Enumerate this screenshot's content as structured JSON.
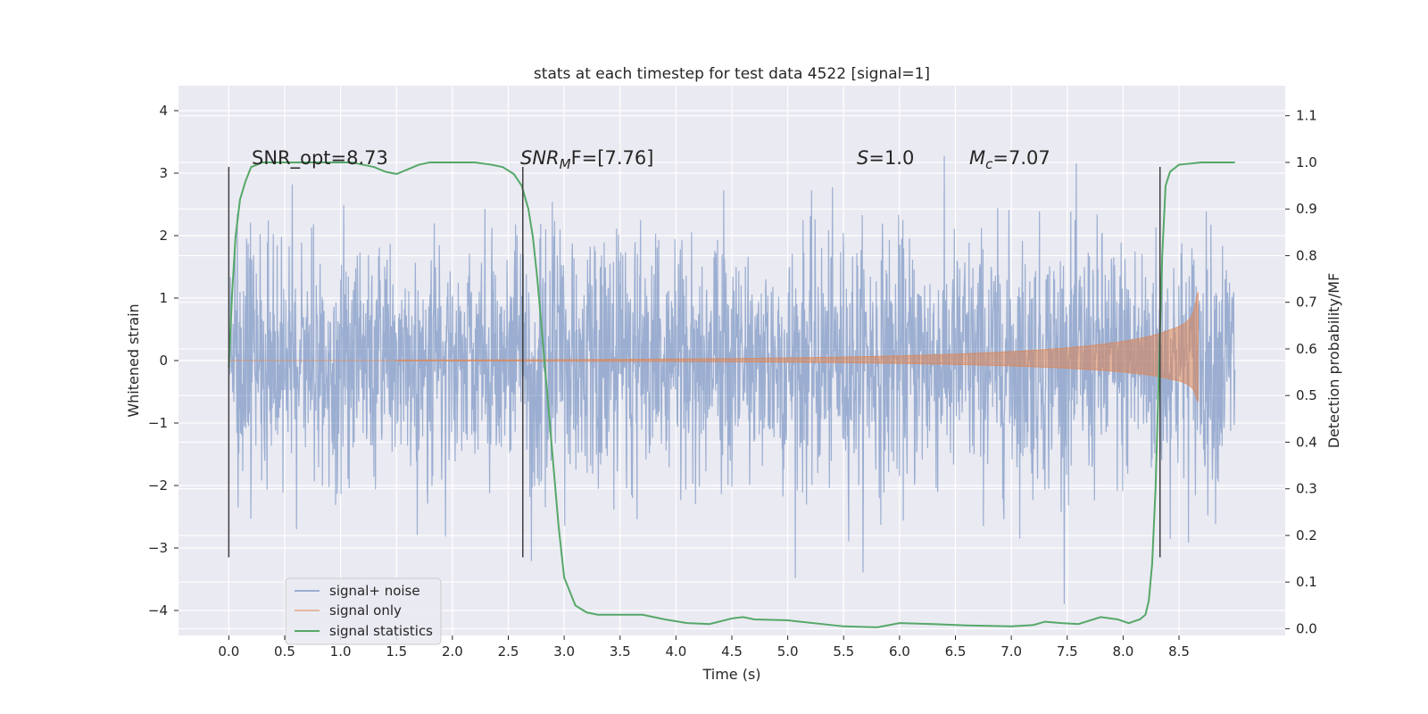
{
  "chart_data": {
    "type": "line",
    "title": "stats at each timestep for test data 4522 [signal=1]",
    "xlabel": "Time (s)",
    "ylabel": "Whitened strain",
    "y2label": "Detection probability/MF",
    "xlim": [
      -0.45,
      9.45
    ],
    "ylim": [
      -4.4,
      4.4
    ],
    "y2lim": [
      -0.0145,
      1.1645
    ],
    "x_ticks": [
      "0.0",
      "0.5",
      "1.0",
      "1.5",
      "2.0",
      "2.5",
      "3.0",
      "3.5",
      "4.0",
      "4.5",
      "5.0",
      "5.5",
      "6.0",
      "6.5",
      "7.0",
      "7.5",
      "8.0",
      "8.5"
    ],
    "y_ticks": [
      "4",
      "3",
      "2",
      "1",
      "0",
      "−1",
      "−2",
      "−3",
      "−4"
    ],
    "y2_ticks": [
      "1.1",
      "1.0",
      "0.9",
      "0.8",
      "0.7",
      "0.6",
      "0.5",
      "0.4",
      "0.3",
      "0.2",
      "0.1",
      "0.0"
    ],
    "grid": true,
    "legend_position": "lower-left",
    "noise": {
      "time_range": [
        0.0,
        9.0
      ],
      "envelope_sigma": 1.0,
      "envelope_range": [
        -3.9,
        4.0
      ],
      "color": "#4c72b0"
    },
    "signal": {
      "time_range": [
        0.0,
        8.67
      ],
      "merger_time": 8.67,
      "peak_amplitude": 1.1,
      "color": "#dd8452"
    },
    "statistics": {
      "color": "#55a868",
      "x": [
        0.0,
        0.03,
        0.06,
        0.1,
        0.15,
        0.2,
        0.3,
        0.5,
        0.7,
        0.9,
        1.0,
        1.1,
        1.2,
        1.3,
        1.4,
        1.5,
        1.6,
        1.7,
        1.8,
        2.0,
        2.2,
        2.35,
        2.45,
        2.55,
        2.62,
        2.68,
        2.72,
        2.76,
        2.8,
        2.85,
        2.9,
        2.95,
        3.0,
        3.05,
        3.1,
        3.2,
        3.3,
        3.5,
        3.7,
        3.9,
        4.1,
        4.3,
        4.5,
        4.6,
        4.7,
        5.0,
        5.5,
        5.8,
        6.0,
        6.3,
        6.6,
        7.0,
        7.2,
        7.3,
        7.45,
        7.6,
        7.8,
        7.95,
        8.05,
        8.15,
        8.2,
        8.23,
        8.26,
        8.29,
        8.32,
        8.35,
        8.38,
        8.42,
        8.5,
        8.7,
        9.0
      ],
      "y": [
        0.56,
        0.72,
        0.84,
        0.92,
        0.96,
        0.99,
        1.0,
        1.0,
        1.0,
        1.0,
        1.0,
        1.0,
        0.995,
        0.99,
        0.98,
        0.975,
        0.985,
        0.995,
        1.0,
        1.0,
        1.0,
        0.995,
        0.99,
        0.975,
        0.95,
        0.9,
        0.84,
        0.75,
        0.64,
        0.5,
        0.36,
        0.22,
        0.11,
        0.08,
        0.05,
        0.035,
        0.03,
        0.03,
        0.03,
        0.02,
        0.012,
        0.01,
        0.022,
        0.025,
        0.02,
        0.018,
        0.005,
        0.003,
        0.012,
        0.01,
        0.007,
        0.005,
        0.008,
        0.015,
        0.012,
        0.01,
        0.025,
        0.02,
        0.012,
        0.02,
        0.03,
        0.06,
        0.14,
        0.3,
        0.55,
        0.8,
        0.95,
        0.98,
        0.995,
        1.0,
        1.0
      ]
    },
    "vertical_lines": {
      "x": [
        0.0,
        2.63,
        8.33
      ],
      "ylim": [
        -3.15,
        3.1
      ],
      "color": "#404040"
    },
    "annotations": {
      "snr_opt": "SNR_opt=8.73",
      "snr_mf_main": "SNR",
      "snr_mf_sub": "M",
      "snr_mf_rest": "F=[7.76]",
      "s_main": "S",
      "s_rest": "=1.0",
      "mc_main": "M",
      "mc_sub": "c",
      "mc_rest": "=7.07"
    },
    "legend": [
      "signal+ noise",
      "signal only",
      "signal statistics"
    ]
  }
}
